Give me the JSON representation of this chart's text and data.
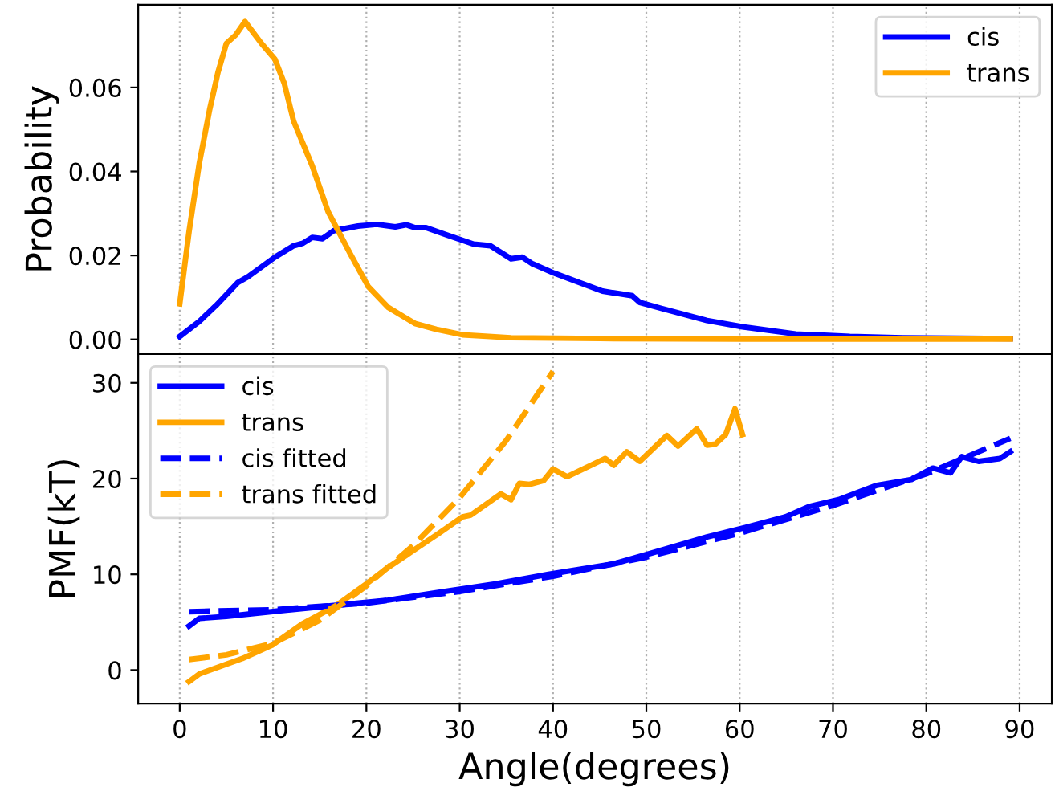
{
  "chart_data": [
    {
      "type": "line",
      "ylabel": "Probability",
      "xlim": [
        -4.45,
        93.45
      ],
      "xticks": [
        0,
        10,
        20,
        30,
        40,
        50,
        60,
        70,
        80,
        90
      ],
      "ylim": [
        -0.0035,
        0.0797
      ],
      "yticks": [
        {
          "value": 0,
          "label": "0.00"
        },
        {
          "value": 0.02,
          "label": "0.02"
        },
        {
          "value": 0.04,
          "label": "0.04"
        },
        {
          "value": 0.06,
          "label": "0.06"
        }
      ],
      "grid": "x",
      "legend": "top right",
      "tick_labels": "y",
      "line_style": "solid",
      "series": [
        {
          "name": "cis",
          "color": "#0000ff",
          "x": [
            0,
            2.1,
            3.9,
            6.2,
            7.3,
            10.2,
            12.2,
            13.2,
            14.2,
            15.3,
            16.5,
            19.1,
            21.1,
            23.1,
            24.3,
            25.2,
            26.4,
            28.6,
            31.5,
            33.3,
            35.5,
            36.7,
            37.8,
            40.1,
            42.4,
            45.3,
            48.5,
            49.3,
            51.6,
            56.5,
            60.3,
            66,
            71.8,
            77.5,
            89
          ],
          "values": [
            0.0007,
            0.0043,
            0.0081,
            0.0135,
            0.0149,
            0.0196,
            0.0223,
            0.0229,
            0.0243,
            0.024,
            0.0259,
            0.027,
            0.0274,
            0.0268,
            0.0273,
            0.0266,
            0.0266,
            0.0249,
            0.0227,
            0.0223,
            0.0192,
            0.0196,
            0.018,
            0.0158,
            0.0139,
            0.0115,
            0.0104,
            0.0088,
            0.0074,
            0.0045,
            0.003,
            0.0013,
            0.0007,
            0.0004,
            0.0002
          ]
        },
        {
          "name": "trans",
          "color": "#ffa500",
          "x": [
            0,
            1,
            2.1,
            3.2,
            4.1,
            5,
            6,
            7,
            8.75,
            10.2,
            11.2,
            12.2,
            14.2,
            15.9,
            18.3,
            20.2,
            22.3,
            25.2,
            27.5,
            30.3,
            35.5,
            45,
            60,
            75,
            89
          ],
          "values": [
            0.0085,
            0.0257,
            0.042,
            0.0547,
            0.0636,
            0.0705,
            0.0725,
            0.0757,
            0.0705,
            0.0667,
            0.061,
            0.052,
            0.0413,
            0.0304,
            0.0203,
            0.0126,
            0.0077,
            0.0038,
            0.0024,
            0.0011,
            0.0004,
            0.0002,
            0.0001,
            0.0001,
            0.0001
          ]
        }
      ]
    },
    {
      "type": "line",
      "xlabel": "Angle(degrees)",
      "ylabel": "PMF(kT)",
      "xlim": [
        -4.45,
        93.45
      ],
      "xticks": [
        0,
        10,
        20,
        30,
        40,
        50,
        60,
        70,
        80,
        90
      ],
      "ylim": [
        -3.5,
        33
      ],
      "yticks": [
        0,
        10,
        20,
        30
      ],
      "grid": "x",
      "legend": "top left",
      "series": [
        {
          "name": "cis",
          "color": "#0000ff",
          "line_style": "solid",
          "x": [
            1,
            2.1,
            5,
            10.8,
            16.5,
            22.3,
            28,
            33.8,
            39.5,
            46.5,
            50.5,
            56.5,
            60.6,
            64.9,
            67.5,
            70.6,
            74.7,
            78.4,
            80.7,
            82.6,
            83.8,
            85.6,
            87.9,
            89
          ],
          "values": [
            4.6,
            5.4,
            5.6,
            6.2,
            6.75,
            7.3,
            8.15,
            9.0,
            10.0,
            11.1,
            12.2,
            13.9,
            14.9,
            16.0,
            17.1,
            17.8,
            19.3,
            19.9,
            21.1,
            20.6,
            22.3,
            21.8,
            22.1,
            22.8
          ]
        },
        {
          "name": "trans",
          "color": "#ffa500",
          "line_style": "solid",
          "x": [
            1,
            2.1,
            6.7,
            9.9,
            13.1,
            16.8,
            20,
            22.3,
            25.2,
            27.8,
            30.3,
            31.2,
            34.4,
            35.5,
            36.4,
            37.5,
            39,
            40,
            41.5,
            45.6,
            46.5,
            47.9,
            49.3,
            52.2,
            53.4,
            55.4,
            56.5,
            57.4,
            58.5,
            59.5,
            60.3
          ],
          "values": [
            -1.2,
            -0.4,
            1.2,
            2.6,
            4.8,
            6.75,
            9.0,
            10.7,
            12.6,
            14.3,
            16.0,
            16.2,
            18.4,
            17.8,
            19.5,
            19.4,
            19.8,
            21.0,
            20.2,
            22.1,
            21.4,
            22.8,
            21.8,
            24.5,
            23.4,
            25.2,
            23.5,
            23.6,
            24.6,
            27.3,
            24.6
          ]
        },
        {
          "name": "cis fitted",
          "color": "#0000ff",
          "line_style": "dashed",
          "x": [
            1,
            10,
            20,
            30,
            40,
            50,
            60,
            70,
            80,
            89
          ],
          "values": [
            6.1,
            6.3,
            7.0,
            8.2,
            9.8,
            11.8,
            14.3,
            17.2,
            20.5,
            24.2
          ]
        },
        {
          "name": "trans fitted",
          "color": "#ffa500",
          "line_style": "dashed",
          "x": [
            1,
            5,
            10,
            15,
            20,
            25,
            30,
            35,
            40
          ],
          "values": [
            1.1,
            1.6,
            2.8,
            5.2,
            8.8,
            13.0,
            18.0,
            24.0,
            31.2
          ]
        }
      ]
    }
  ]
}
